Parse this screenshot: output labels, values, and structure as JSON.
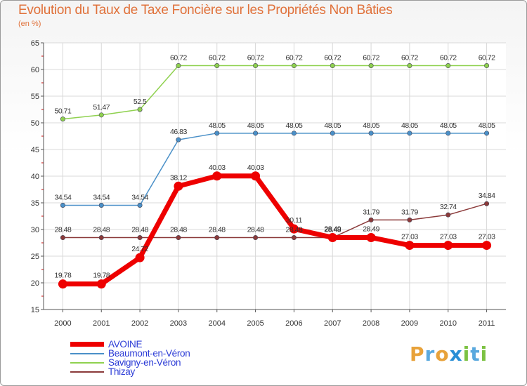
{
  "title": "Evolution du Taux de Taxe Foncière sur les Propriétés Non Bâties",
  "unit": "(en %)",
  "logo": {
    "text": "Proxiti",
    "letters": [
      {
        "ch": "P",
        "color": "#e8a23a"
      },
      {
        "ch": "r",
        "color": "#5aa9de"
      },
      {
        "ch": "o",
        "color": "#e8a23a"
      },
      {
        "ch": "x",
        "color": "#2a8fd6"
      },
      {
        "ch": "i",
        "color": "#7cc242"
      },
      {
        "ch": "t",
        "color": "#5aa9de"
      },
      {
        "ch": "i",
        "color": "#7cc242"
      }
    ]
  },
  "chart_data": {
    "type": "line",
    "title": "Evolution du Taux de Taxe Foncière sur les Propriétés Non Bâties",
    "ylabel": "(en %)",
    "xlabel": "",
    "ylim": [
      15,
      65
    ],
    "yticks": [
      "15",
      "20",
      "25",
      "30",
      "35",
      "40",
      "45",
      "50",
      "55",
      "60",
      "65"
    ],
    "x": [
      "2000",
      "2001",
      "2002",
      "2003",
      "2004",
      "2005",
      "2006",
      "2007",
      "2008",
      "2009",
      "2010",
      "2011"
    ],
    "grid": true,
    "legend_position": "bottom-left",
    "series": [
      {
        "name": "AVOINE",
        "color": "#ee0000",
        "values": [
          19.78,
          19.78,
          24.72,
          38.12,
          40.03,
          40.03,
          30.11,
          28.49,
          28.49,
          27.03,
          27.03,
          27.03
        ],
        "labels": [
          "19.78",
          "19.78",
          "24.72",
          "38.12",
          "40.03",
          "40.03",
          "30.11",
          "28.49",
          "28.49",
          "27.03",
          "27.03",
          "27.03"
        ]
      },
      {
        "name": "Beaumont-en-Véron",
        "color": "#4a90c8",
        "values": [
          34.54,
          34.54,
          34.54,
          46.83,
          48.05,
          48.05,
          48.05,
          48.05,
          48.05,
          48.05,
          48.05,
          48.05
        ],
        "labels": [
          "34.54",
          "34.54",
          "34.54",
          "46.83",
          "48.05",
          "48.05",
          "48.05",
          "48.05",
          "48.05",
          "48.05",
          "48.05",
          "48.05"
        ]
      },
      {
        "name": "Savigny-en-Véron",
        "color": "#8fd14f",
        "values": [
          50.71,
          51.47,
          52.5,
          60.72,
          60.72,
          60.72,
          60.72,
          60.72,
          60.72,
          60.72,
          60.72,
          60.72
        ],
        "labels": [
          "50.71",
          "51.47",
          "52.5",
          "60.72",
          "60.72",
          "60.72",
          "60.72",
          "60.72",
          "60.72",
          "60.72",
          "60.72",
          "60.72"
        ]
      },
      {
        "name": "Thizay",
        "color": "#8b3a3a",
        "values": [
          28.48,
          28.48,
          28.48,
          28.48,
          28.48,
          28.48,
          28.48,
          28.48,
          31.79,
          31.79,
          32.74,
          34.84
        ],
        "labels": [
          "28.48",
          "28.48",
          "28.48",
          "28.48",
          "28.48",
          "28.48",
          "28.48",
          "28.48",
          "31.79",
          "31.79",
          "32.74",
          "34.84"
        ]
      }
    ]
  }
}
